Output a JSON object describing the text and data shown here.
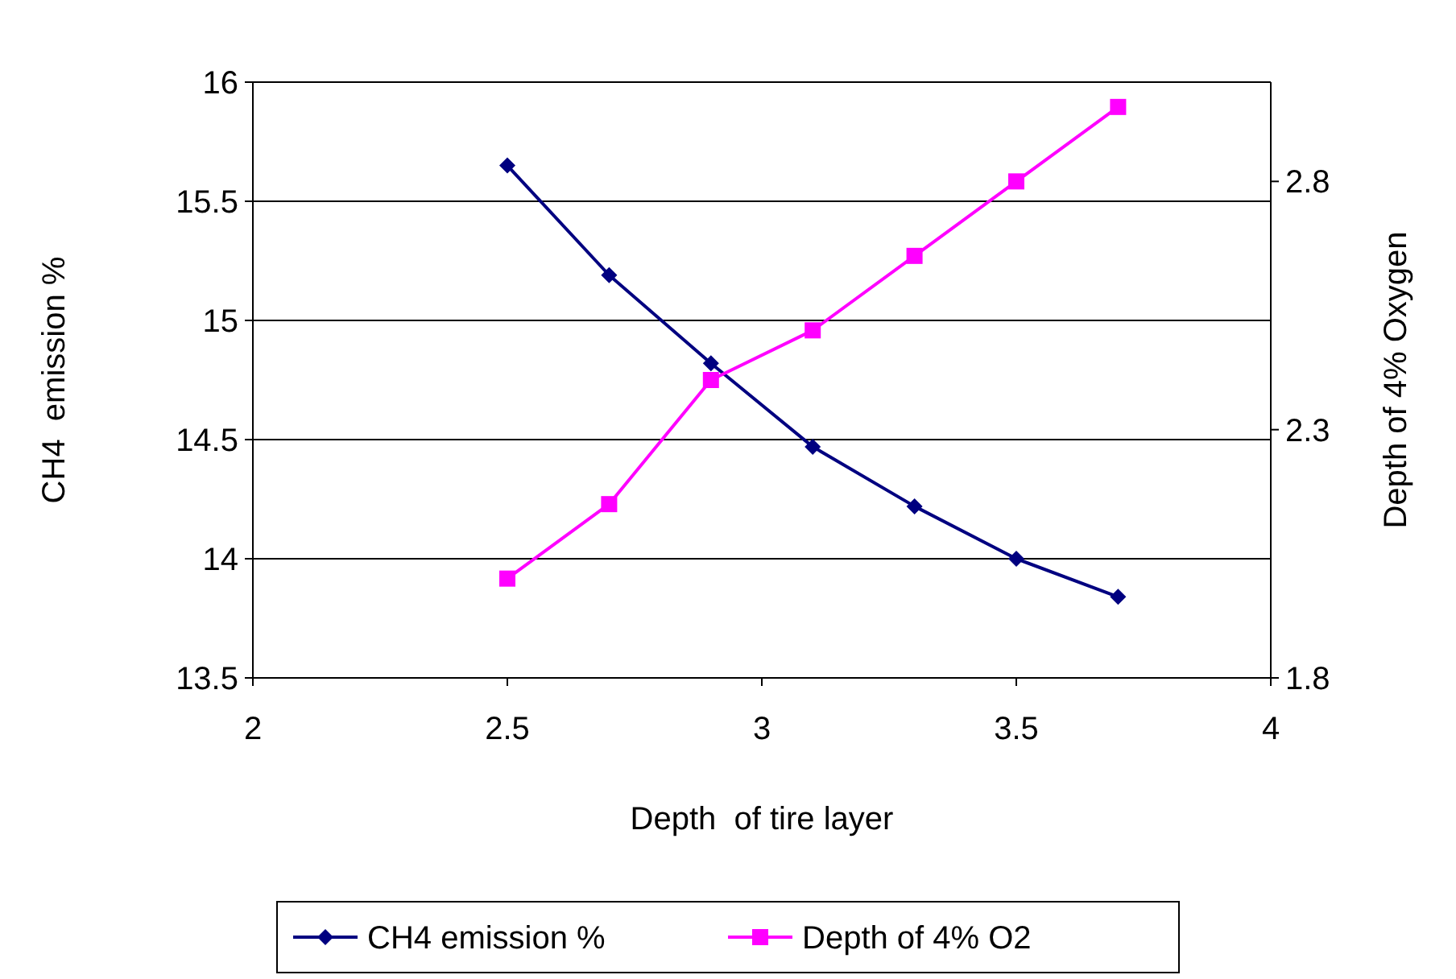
{
  "chart_data": {
    "type": "line",
    "x": [
      2.5,
      2.7,
      2.9,
      3.1,
      3.3,
      3.5,
      3.7
    ],
    "xlabel": "Depth  of tire layer",
    "ylabel": "CH4  emission %",
    "y2label": "Depth of 4% Oxygen",
    "series": [
      {
        "name": "CH4 emission %",
        "color": "#000080",
        "marker": "diamond",
        "values": [
          15.65,
          15.19,
          14.82,
          14.47,
          14.22,
          14.0,
          13.84
        ]
      },
      {
        "name": "Depth of 4% O2",
        "color": "#ff00ff",
        "marker": "square",
        "axis": "y2",
        "values": [
          2.0,
          2.15,
          2.4,
          2.5,
          2.65,
          2.8,
          2.95
        ]
      }
    ],
    "xlim": [
      2,
      4
    ],
    "xticks": [
      2,
      2.5,
      3,
      3.5,
      4
    ],
    "ylim": [
      13.5,
      16
    ],
    "yticks": [
      13.5,
      14,
      14.5,
      15,
      15.5,
      16
    ],
    "y2lim": [
      1.8,
      3.0
    ],
    "y2ticks": [
      1.8,
      2.3,
      2.8
    ],
    "grid": "y",
    "legend": "bottom"
  }
}
